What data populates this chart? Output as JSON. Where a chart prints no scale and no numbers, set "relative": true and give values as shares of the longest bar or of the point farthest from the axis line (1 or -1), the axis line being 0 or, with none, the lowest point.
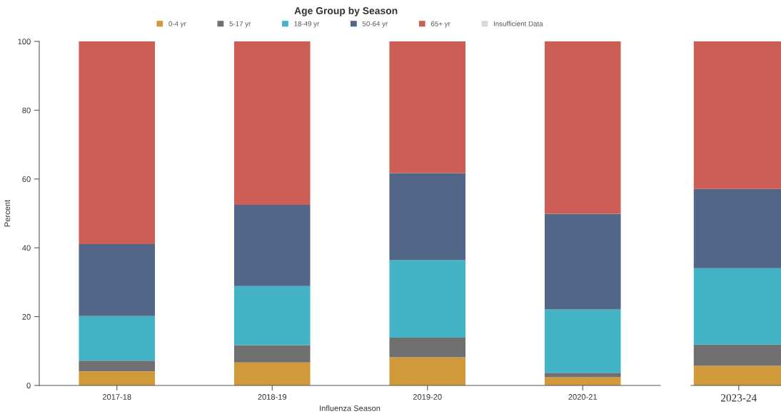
{
  "chart_data": [
    {
      "type": "bar",
      "title": "Age Group by Season",
      "xlabel": "Influenza Season",
      "ylabel": "Percent",
      "stacked": true,
      "legend": "top",
      "categories": [
        "2017-18",
        "2018-19",
        "2019-20",
        "2020-21"
      ],
      "ylim": [
        0,
        100
      ],
      "yticks": [
        0,
        20,
        40,
        60,
        80,
        100
      ],
      "grid": false,
      "series": [
        {
          "name": "0-4 yr",
          "color": "#d0993a",
          "values": [
            4.1,
            6.7,
            8.2,
            2.4
          ]
        },
        {
          "name": "5-17 yr",
          "color": "#707070",
          "values": [
            3.1,
            5.0,
            5.7,
            1.3
          ]
        },
        {
          "name": "18-49 yr",
          "color": "#43b3c6",
          "values": [
            13.0,
            17.2,
            22.5,
            18.4
          ]
        },
        {
          "name": "50-64 yr",
          "color": "#526687",
          "values": [
            20.9,
            23.6,
            25.3,
            27.8
          ]
        },
        {
          "name": "65+ yr",
          "color": "#cc5e55",
          "values": [
            58.9,
            47.5,
            38.3,
            50.1
          ]
        },
        {
          "name": "Insufficient Data",
          "color": "#d9d9d9",
          "values": [
            null,
            null,
            null,
            null
          ]
        }
      ]
    },
    {
      "type": "bar",
      "stacked": true,
      "relative": true,
      "tick_labels": "x",
      "categories": [
        "2023-24"
      ],
      "series": [
        {
          "color": "#d0993a",
          "values": [
            0.057
          ]
        },
        {
          "color": "#707070",
          "values": [
            0.062
          ]
        },
        {
          "color": "#43b3c6",
          "values": [
            0.222
          ]
        },
        {
          "color": "#526687",
          "values": [
            0.23
          ]
        },
        {
          "color": "#cc5e55",
          "values": [
            0.429
          ]
        }
      ]
    }
  ]
}
